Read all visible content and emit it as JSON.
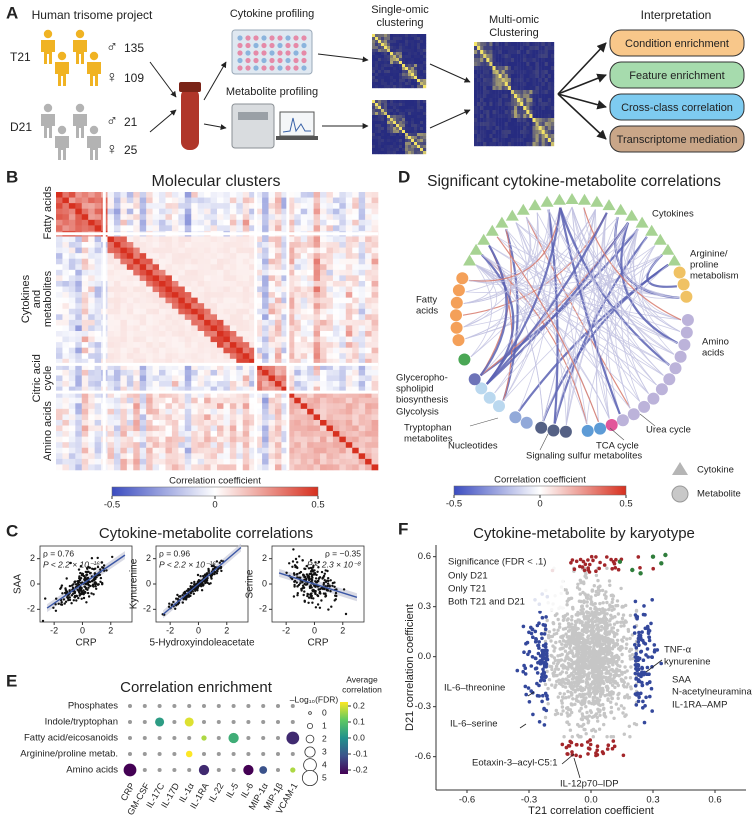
{
  "panel_a": {
    "letter": "A",
    "project": "Human trisome project",
    "groups": [
      {
        "label": "T21",
        "male_symbol": "♂",
        "male_n": 135,
        "female_symbol": "♀",
        "female_n": 109
      },
      {
        "label": "D21",
        "male_symbol": "♂",
        "male_n": 21,
        "female_symbol": "♀",
        "female_n": 25
      }
    ],
    "cytokine_profiling": "Cytokine profiling",
    "metabolite_profiling": "Metabolite profiling",
    "single_omic": [
      "Single-omic",
      "clustering"
    ],
    "multi_omic": [
      "Multi-omic",
      "Clustering"
    ],
    "interpretation": "Interpretation",
    "outputs": [
      "Condition enrichment",
      "Feature enrichment",
      "Cross-class correlation",
      "Transcriptome mediation"
    ]
  },
  "panel_b": {
    "letter": "B",
    "title": "Molecular clusters",
    "row_labels": [
      [
        "Fatty acids"
      ],
      [
        "Cytokines",
        "and",
        "metabolites"
      ],
      [
        "Citric acid",
        "cycle"
      ],
      [
        "Amino acids"
      ]
    ],
    "colorbar_title": "Correlation coefficient",
    "clim": [
      -0.5,
      0.5
    ],
    "colorbar_ticks": [
      -0.5,
      0,
      0.5
    ]
  },
  "panel_c": {
    "letter": "C",
    "title": "Cytokine-metabolite correlations",
    "plots": [
      {
        "xlabel": "CRP",
        "ylabel": "SAA",
        "rho": "ρ = 0.76",
        "p": "P < 2.2 × 10⁻¹⁶",
        "xlim": [
          -3,
          3.5
        ],
        "ylim": [
          -3,
          3
        ],
        "xticks": [
          -2,
          0,
          2
        ],
        "yticks": [
          -2,
          0,
          2
        ]
      },
      {
        "xlabel": "5-Hydroxyindoleacetate",
        "ylabel": "Kynurenine",
        "rho": "ρ = 0.96",
        "p": "P < 2.2 × 10⁻¹⁶",
        "xlim": [
          -3,
          3.5
        ],
        "ylim": [
          -3,
          3
        ],
        "xticks": [
          -2,
          0,
          2
        ],
        "yticks": [
          -2,
          0,
          2
        ]
      },
      {
        "xlabel": "CRP",
        "ylabel": "Serine",
        "rho": "ρ = −0.35",
        "p": "P < 2.3 × 10⁻⁸",
        "xlim": [
          -3,
          3.5
        ],
        "ylim": [
          -3,
          3
        ],
        "xticks": [
          -2,
          0,
          2
        ],
        "yticks": [
          -2,
          0,
          2
        ]
      }
    ]
  },
  "panel_d": {
    "letter": "D",
    "title": "Significant cytokine-metabolite correlations",
    "labels": {
      "cytokines": [
        "Cytokines"
      ],
      "arginine": [
        "Arginine/",
        "proline",
        "metabolism"
      ],
      "fatty": [
        "Fatty",
        "acids"
      ],
      "amino": [
        "Amino",
        "acids"
      ],
      "glycero": [
        "Glycerophо-",
        "spholipid",
        "biosynthesis"
      ],
      "glycolysis": [
        "Glycolysis"
      ],
      "tryptophan": [
        "Tryptophan",
        "metabolites"
      ],
      "nucleotides": [
        "Nucleotides"
      ],
      "sulfur": [
        "Signaling sulfur metabolites"
      ],
      "tca": [
        "TCA cycle"
      ],
      "urea": [
        "Urea cycle"
      ]
    },
    "legend": [
      "Cytokine",
      "Metabolite"
    ],
    "colorbar_title": "Correlation coefficient",
    "clim": [
      -0.5,
      0.5
    ],
    "colorbar_ticks": [
      -0.5,
      0,
      0.5
    ]
  },
  "panel_e": {
    "letter": "E",
    "title": "Correlation enrichment",
    "rows": [
      "Phosphates",
      "Indole/tryptophan",
      "Fatty acid/eicosanoids",
      "Arginine/proline metab.",
      "Amino acids"
    ],
    "columns": [
      "CRP",
      "GM-CSF",
      "IL-17C",
      "IL-17D",
      "IL-1α",
      "IL-1RA",
      "IL-22",
      "IL-5",
      "IL-6",
      "MIP-1α",
      "MIP-1β",
      "VCAM-1"
    ],
    "sizes": [
      [
        0.5,
        0.5,
        0.5,
        0.5,
        0.5,
        0.5,
        0.5,
        0.5,
        0.5,
        0.5,
        0.5,
        0.5
      ],
      [
        0.5,
        0.5,
        2.5,
        0.5,
        2.5,
        0.5,
        0.5,
        0.5,
        0.5,
        0.5,
        0.5,
        0.5
      ],
      [
        0.5,
        0.5,
        0.5,
        0.5,
        0.5,
        1,
        0.5,
        3,
        0.5,
        0.5,
        0.5,
        4
      ],
      [
        0.5,
        0.5,
        0.5,
        0.5,
        1.5,
        0.5,
        0.5,
        0.5,
        0.5,
        0.5,
        0.5,
        0.5
      ],
      [
        4,
        0.5,
        0.5,
        0.5,
        0.5,
        3,
        0.5,
        0.5,
        3,
        2,
        0.5,
        1
      ]
    ],
    "correlations": [
      [
        null,
        null,
        null,
        null,
        null,
        null,
        null,
        null,
        null,
        null,
        null,
        null
      ],
      [
        null,
        null,
        0.02,
        null,
        0.18,
        null,
        null,
        null,
        null,
        null,
        null,
        null
      ],
      [
        null,
        null,
        null,
        null,
        null,
        0.15,
        null,
        0.05,
        null,
        null,
        null,
        -0.15
      ],
      [
        null,
        null,
        null,
        null,
        0.2,
        null,
        null,
        null,
        null,
        null,
        null,
        null
      ],
      [
        -0.2,
        null,
        null,
        null,
        null,
        -0.15,
        null,
        null,
        -0.2,
        -0.1,
        null,
        0.15
      ]
    ],
    "size_title": "–Log₁₀(FDR)",
    "size_legend": [
      0,
      1,
      2,
      3,
      4,
      5
    ],
    "color_title": [
      "Average",
      "correlation"
    ],
    "color_ticks": [
      0.2,
      0.1,
      {
        "value": 0,
        "label": "0.0"
      },
      -0.1,
      -0.2
    ]
  },
  "panel_f": {
    "letter": "F",
    "title": "Cytokine-metabolite by karyotype",
    "xlabel": "T21 correlation coefficient",
    "ylabel": "D21 correlation coefficient",
    "xlim": [
      -0.75,
      0.75
    ],
    "ylim": [
      -0.8,
      0.67
    ],
    "xticks": [
      -0.6,
      -0.3,
      {
        "value": 0,
        "label": "0.0"
      },
      0.3,
      0.6
    ],
    "yticks": [
      -0.6,
      -0.3,
      {
        "value": 0,
        "label": "0.0"
      },
      0.3,
      0.6
    ],
    "legend_title": "Significance (FDR < .1)",
    "legend": [
      {
        "name": "Only D21",
        "color": "#a3262a"
      },
      {
        "name": "Only T21",
        "color": "#34489c"
      },
      {
        "name": "Both T21 and D21",
        "color": "#2f7d3b"
      }
    ],
    "annotations": [
      "TNF-α",
      "kynurenine",
      "SAA",
      "N-acetylneuraminate",
      "IL-1RA–AMP",
      "IL-6–threonine",
      "IL-6–serine",
      "Eotaxin-3–acyl-C5:1",
      "IL-12p70–IDP"
    ]
  }
}
